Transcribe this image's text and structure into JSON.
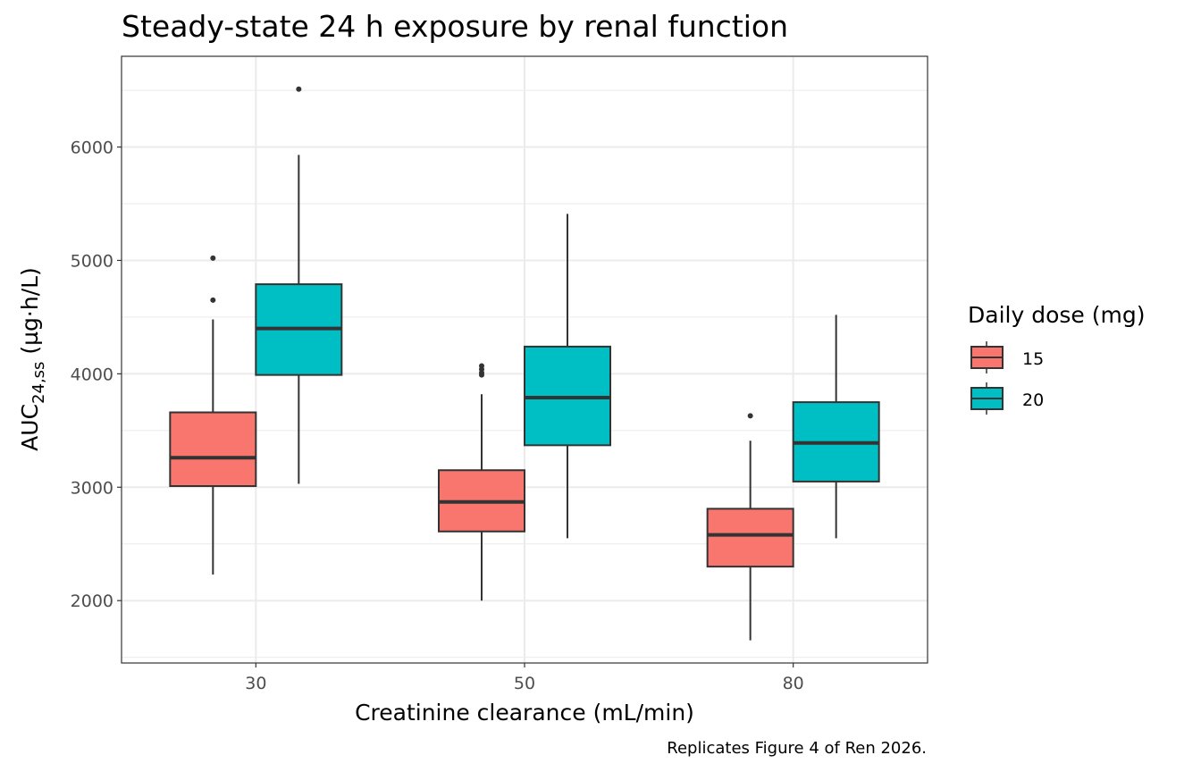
{
  "chart_data": {
    "type": "boxplot",
    "title": "Steady-state 24 h exposure by renal function",
    "xlabel": "Creatinine clearance (mL/min)",
    "ylabel": {
      "main": "AUC",
      "subscript": "24,ss",
      "unit": " (µg·h/L)"
    },
    "caption": "Replicates Figure 4 of Ren 2026.",
    "categories": [
      "30",
      "50",
      "80"
    ],
    "ylim": [
      1450,
      6800
    ],
    "yticks": [
      2000,
      3000,
      4000,
      5000,
      6000
    ],
    "yticks_labels": [
      "2000",
      "3000",
      "4000",
      "5000",
      "6000"
    ],
    "grid": true,
    "legend": {
      "title": "Daily dose (mg)",
      "position": "right"
    },
    "series": [
      {
        "name": "15",
        "color": "#F8766D",
        "boxes": [
          {
            "category": "30",
            "whisker_low": 2230,
            "q1": 3010,
            "median": 3260,
            "q3": 3660,
            "whisker_high": 4480,
            "outliers": [
              4650,
              5020
            ]
          },
          {
            "category": "50",
            "whisker_low": 2000,
            "q1": 2610,
            "median": 2870,
            "q3": 3150,
            "whisker_high": 3820,
            "outliers": [
              3990,
              4010,
              4040,
              4070
            ]
          },
          {
            "category": "80",
            "whisker_low": 1650,
            "q1": 2300,
            "median": 2580,
            "q3": 2810,
            "whisker_high": 3410,
            "outliers": [
              3630
            ]
          }
        ]
      },
      {
        "name": "20",
        "color": "#00BFC4",
        "boxes": [
          {
            "category": "30",
            "whisker_low": 3030,
            "q1": 3990,
            "median": 4400,
            "q3": 4790,
            "whisker_high": 5930,
            "outliers": [
              6510
            ]
          },
          {
            "category": "50",
            "whisker_low": 2550,
            "q1": 3370,
            "median": 3790,
            "q3": 4240,
            "whisker_high": 5410,
            "outliers": []
          },
          {
            "category": "80",
            "whisker_low": 2550,
            "q1": 3050,
            "median": 3390,
            "q3": 3750,
            "whisker_high": 4520,
            "outliers": []
          }
        ]
      }
    ]
  }
}
